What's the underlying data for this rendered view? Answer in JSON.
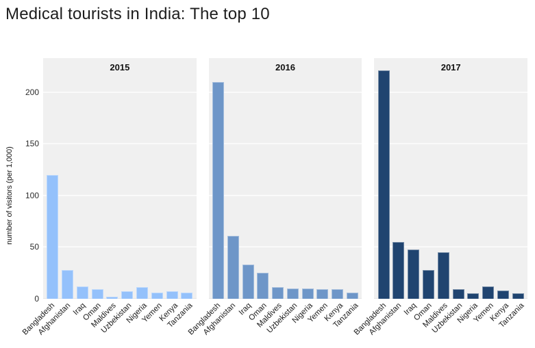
{
  "page_title": "Medical tourists in India: The top 10",
  "chart_data": {
    "type": "bar",
    "title": "Medical tourists in India: The top 10",
    "xlabel": "",
    "ylabel": "number of visitors (per 1,000)",
    "ylim": [
      0,
      233
    ],
    "yticks": [
      0,
      50,
      100,
      150,
      200
    ],
    "grid": "on",
    "legend": "none",
    "panel_bg_color": "#f0f0f0",
    "gridline_color": "#fafafa",
    "categories": [
      "Bangladesh",
      "Afghanistan",
      "Iraq",
      "Oman",
      "Maldives",
      "Uzbekistan",
      "Nigeria",
      "Yemen",
      "Kenya",
      "Tanzania"
    ],
    "facets": [
      {
        "label": "2015",
        "bar_color": "#94c1fb",
        "values": [
          120,
          28,
          12,
          9,
          2,
          7,
          11,
          6,
          7,
          6
        ]
      },
      {
        "label": "2016",
        "bar_color": "#6e96c8",
        "values": [
          210,
          61,
          33,
          25,
          11,
          10,
          10,
          9,
          9,
          6
        ]
      },
      {
        "label": "2017",
        "bar_color": "#204470",
        "values": [
          221,
          55,
          48,
          28,
          45,
          9,
          5,
          12,
          8,
          5
        ]
      }
    ]
  }
}
